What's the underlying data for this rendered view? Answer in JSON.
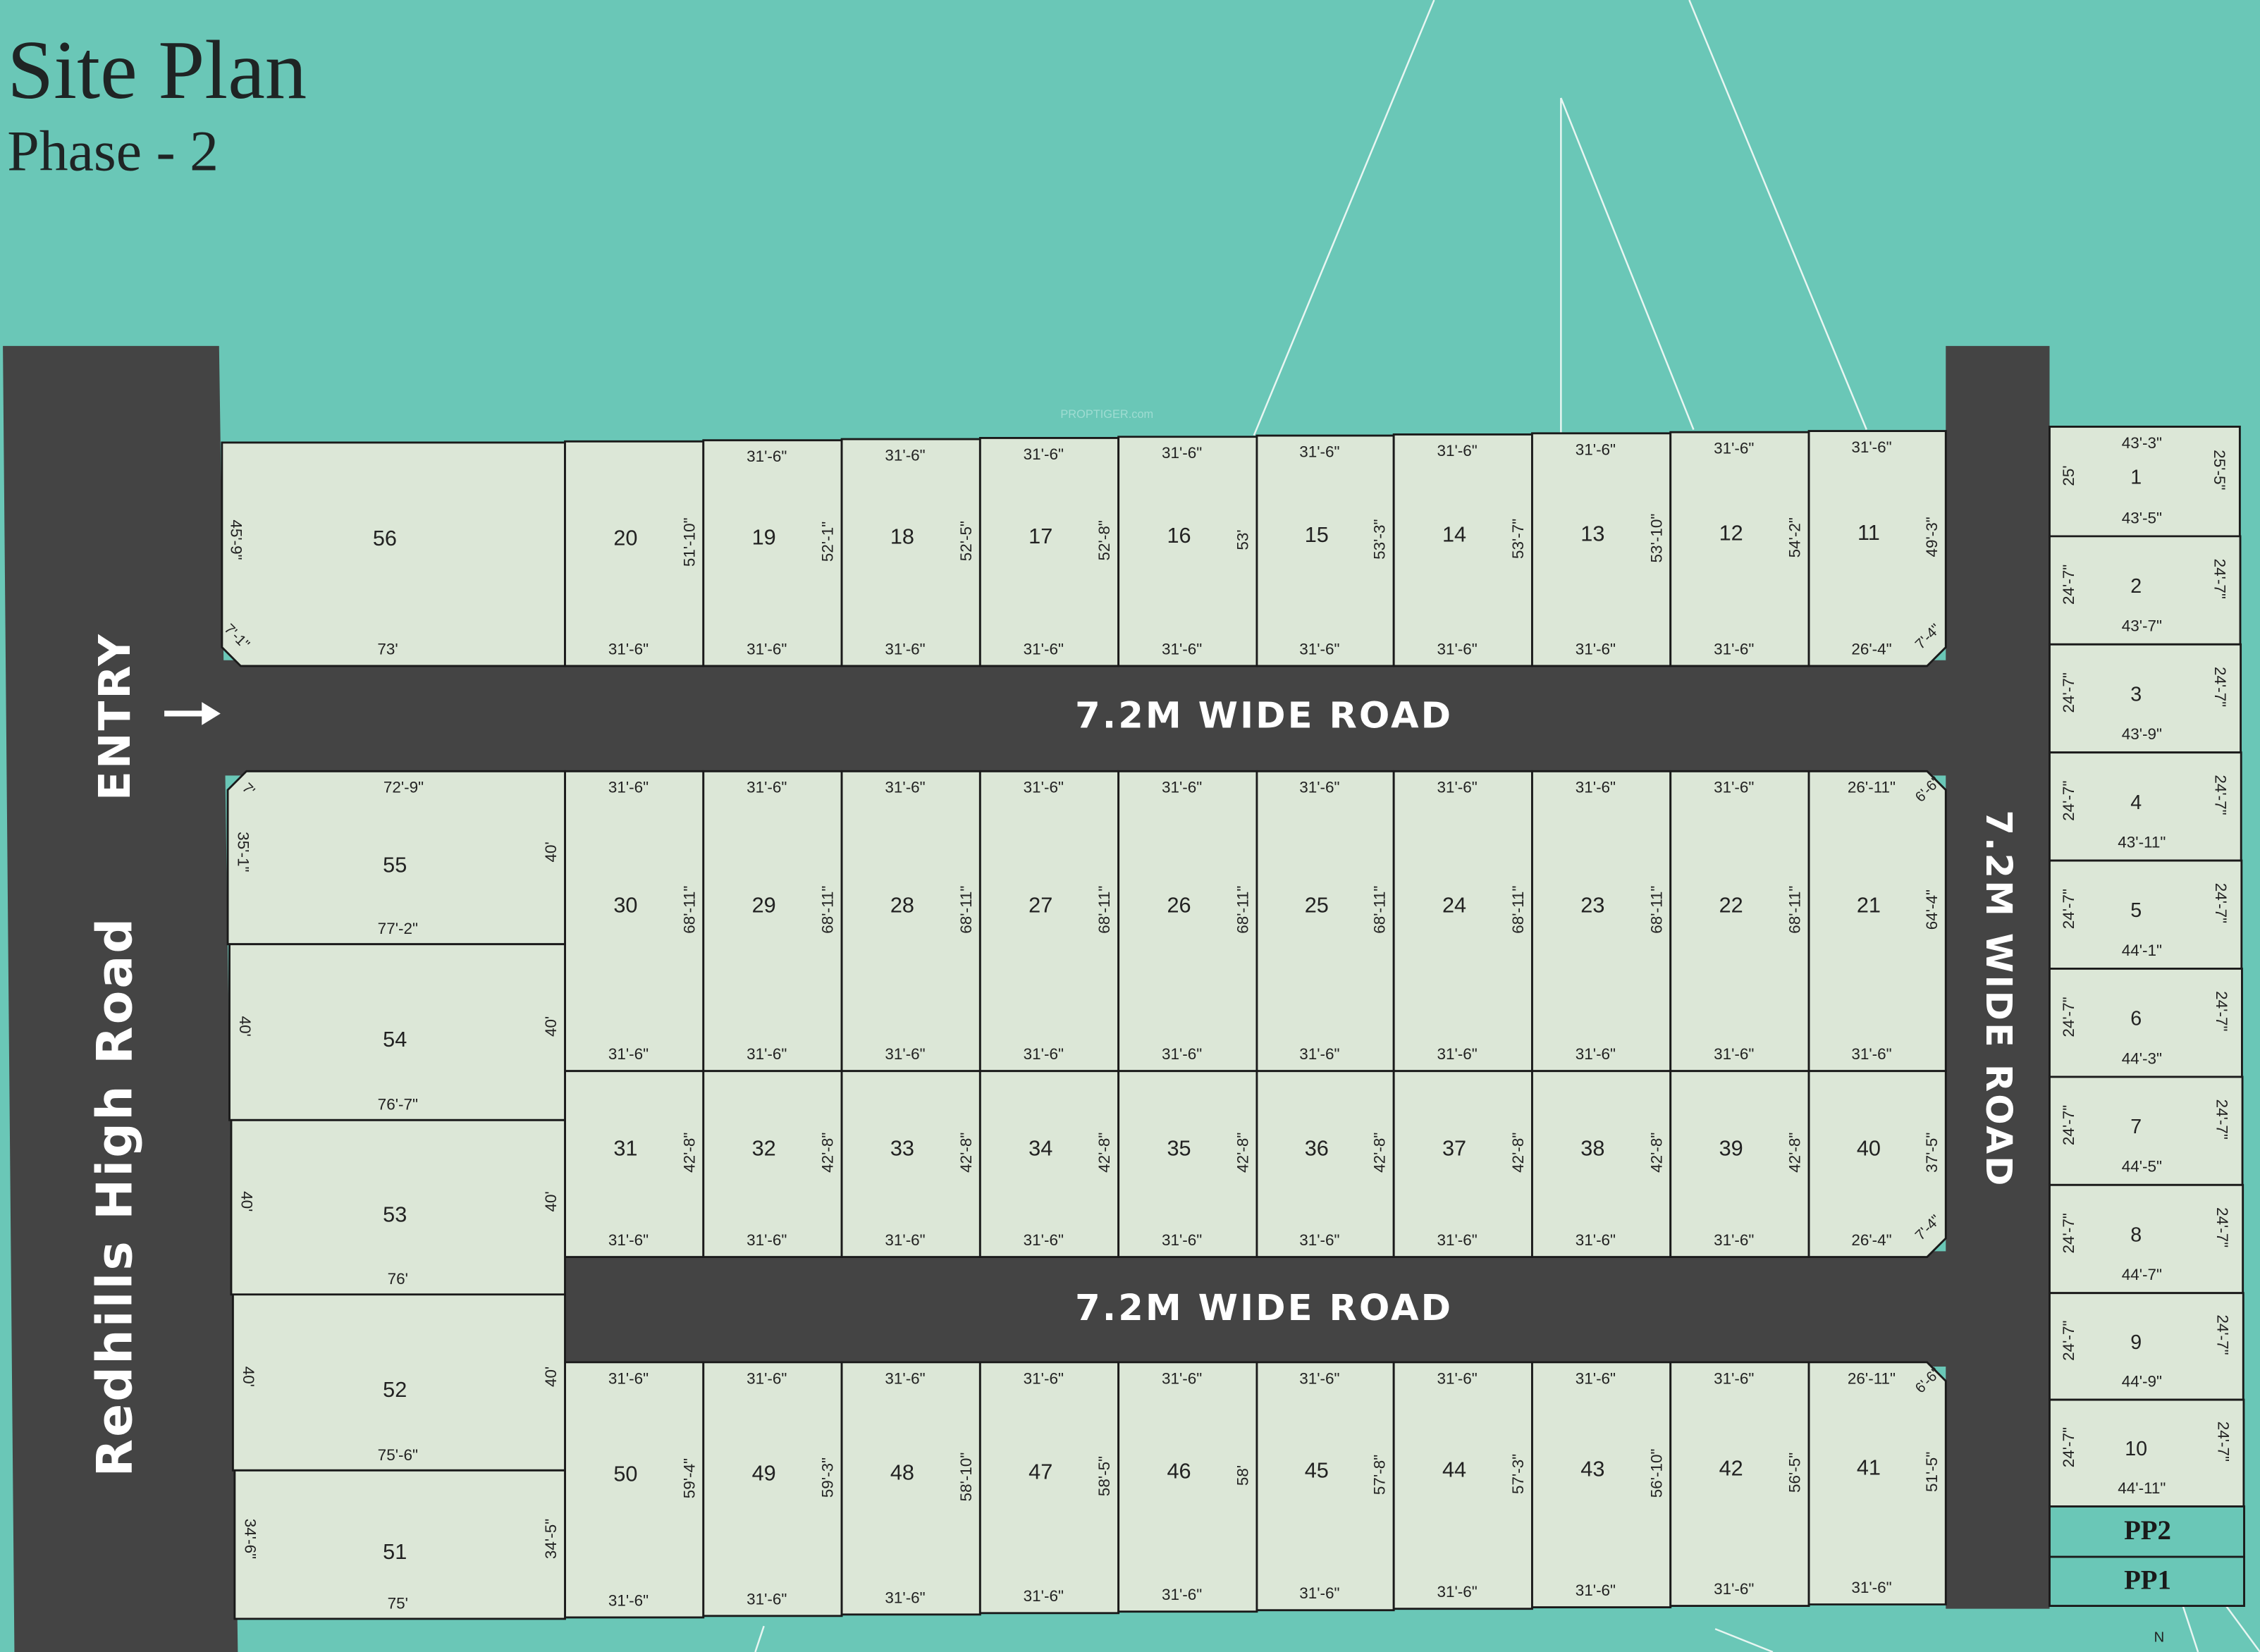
{
  "header": {
    "title": "Site Plan",
    "subtitle": "Phase - 2"
  },
  "watermark": "PROPTIGER.com",
  "compass": "N",
  "colors": {
    "background": "#6AC7B7",
    "road": "#444444",
    "plot": "#DCE7D7",
    "boundary": "#1a1a1a",
    "parking": "#6AC7B7"
  },
  "roads": {
    "main_road": "Redhills High Road",
    "entry": "ENTRY",
    "entry_icon": "arrow-right-icon",
    "upper_road": "7.2M WIDE ROAD",
    "lower_road": "7.2M WIDE ROAD",
    "side_road": "7.2M WIDE ROAD"
  },
  "top_row": [
    {
      "number": "56",
      "bottom": "73'",
      "left": "45'-9\"",
      "corner": "7'-1\""
    },
    {
      "number": "20",
      "bottom": "31'-6\"",
      "side": "51'-10\""
    },
    {
      "number": "19",
      "top": "31'-6\"",
      "bottom": "31'-6\"",
      "side": "52'-1\""
    },
    {
      "number": "18",
      "top": "31'-6\"",
      "bottom": "31'-6\"",
      "side": "52'-5\""
    },
    {
      "number": "17",
      "top": "31'-6\"",
      "bottom": "31'-6\"",
      "side": "52'-8\""
    },
    {
      "number": "16",
      "top": "31'-6\"",
      "bottom": "31'-6\"",
      "side": "53'"
    },
    {
      "number": "15",
      "top": "31'-6\"",
      "bottom": "31'-6\"",
      "side": "53'-3\""
    },
    {
      "number": "14",
      "top": "31'-6\"",
      "bottom": "31'-6\"",
      "side": "53'-7\""
    },
    {
      "number": "13",
      "top": "31'-6\"",
      "bottom": "31'-6\"",
      "side": "53'-10\""
    },
    {
      "number": "12",
      "top": "31'-6\"",
      "bottom": "31'-6\"",
      "side": "54'-2\""
    },
    {
      "number": "11",
      "top": "31'-6\"",
      "bottom": "26'-4\"",
      "side": "49'-3\"",
      "corner": "7'-4\""
    }
  ],
  "middle_upper_row": [
    {
      "number": "30",
      "top": "31'-6\"",
      "bottom": "31'-6\"",
      "side": "68'-11\""
    },
    {
      "number": "29",
      "top": "31'-6\"",
      "bottom": "31'-6\"",
      "side": "68'-11\""
    },
    {
      "number": "28",
      "top": "31'-6\"",
      "bottom": "31'-6\"",
      "side": "68'-11\""
    },
    {
      "number": "27",
      "top": "31'-6\"",
      "bottom": "31'-6\"",
      "side": "68'-11\""
    },
    {
      "number": "26",
      "top": "31'-6\"",
      "bottom": "31'-6\"",
      "side": "68'-11\""
    },
    {
      "number": "25",
      "top": "31'-6\"",
      "bottom": "31'-6\"",
      "side": "68'-11\""
    },
    {
      "number": "24",
      "top": "31'-6\"",
      "bottom": "31'-6\"",
      "side": "68'-11\""
    },
    {
      "number": "23",
      "top": "31'-6\"",
      "bottom": "31'-6\"",
      "side": "68'-11\""
    },
    {
      "number": "22",
      "top": "31'-6\"",
      "bottom": "31'-6\"",
      "side": "68'-11\""
    },
    {
      "number": "21",
      "top": "26'-11\"",
      "bottom": "31'-6\"",
      "side": "64'-4\"",
      "corner": "6'-6\""
    }
  ],
  "middle_lower_row": [
    {
      "number": "31",
      "bottom": "31'-6\"",
      "side": "42'-8\""
    },
    {
      "number": "32",
      "bottom": "31'-6\"",
      "side": "42'-8\""
    },
    {
      "number": "33",
      "bottom": "31'-6\"",
      "side": "42'-8\""
    },
    {
      "number": "34",
      "bottom": "31'-6\"",
      "side": "42'-8\""
    },
    {
      "number": "35",
      "bottom": "31'-6\"",
      "side": "42'-8\""
    },
    {
      "number": "36",
      "bottom": "31'-6\"",
      "side": "42'-8\""
    },
    {
      "number": "37",
      "bottom": "31'-6\"",
      "side": "42'-8\""
    },
    {
      "number": "38",
      "bottom": "31'-6\"",
      "side": "42'-8\""
    },
    {
      "number": "39",
      "bottom": "31'-6\"",
      "side": "42'-8\""
    },
    {
      "number": "40",
      "bottom": "26'-4\"",
      "side": "37'-5\"",
      "corner": "7'-4\""
    }
  ],
  "bottom_row": [
    {
      "number": "50",
      "top": "31'-6\"",
      "bottom": "31'-6\"",
      "side": "59'-4\""
    },
    {
      "number": "49",
      "top": "31'-6\"",
      "bottom": "31'-6\"",
      "side": "59'-3\""
    },
    {
      "number": "48",
      "top": "31'-6\"",
      "bottom": "31'-6\"",
      "side": "58'-10\""
    },
    {
      "number": "47",
      "top": "31'-6\"",
      "bottom": "31'-6\"",
      "side": "58'-5\""
    },
    {
      "number": "46",
      "top": "31'-6\"",
      "bottom": "31'-6\"",
      "side": "58'"
    },
    {
      "number": "45",
      "top": "31'-6\"",
      "bottom": "31'-6\"",
      "side": "57'-8\""
    },
    {
      "number": "44",
      "top": "31'-6\"",
      "bottom": "31'-6\"",
      "side": "57'-3\""
    },
    {
      "number": "43",
      "top": "31'-6\"",
      "bottom": "31'-6\"",
      "side": "56'-10\""
    },
    {
      "number": "42",
      "top": "31'-6\"",
      "bottom": "31'-6\"",
      "side": "56'-5\""
    },
    {
      "number": "41",
      "top": "26'-11\"",
      "bottom": "31'-6\"",
      "side": "51'-5\"",
      "corner": "6'-6\""
    }
  ],
  "left_block": [
    {
      "number": "55",
      "top": "72'-9\"",
      "bottom": "77'-2\"",
      "left": "35'-1\"",
      "right": "40'",
      "corner": "7'"
    },
    {
      "number": "54",
      "bottom": "76'-7\"",
      "left": "40'",
      "right": "40'"
    },
    {
      "number": "53",
      "bottom": "76'",
      "left": "40'",
      "right": "40'"
    },
    {
      "number": "52",
      "bottom": "75'-6\"",
      "left": "40'",
      "right": "40'"
    },
    {
      "number": "51",
      "bottom": "75'",
      "left": "34'-6\"",
      "right": "34'-5\""
    }
  ],
  "right_column": [
    {
      "number": "1",
      "top": "43'-3\"",
      "bottom": "43'-5\"",
      "left": "25'",
      "right": "25'-5\""
    },
    {
      "number": "2",
      "bottom": "43'-7\"",
      "left": "24'-7\"",
      "right": "24'-7\""
    },
    {
      "number": "3",
      "bottom": "43'-9\"",
      "left": "24'-7\"",
      "right": "24'-7\""
    },
    {
      "number": "4",
      "bottom": "43'-11\"",
      "left": "24'-7\"",
      "right": "24'-7\""
    },
    {
      "number": "5",
      "bottom": "44'-1\"",
      "left": "24'-7\"",
      "right": "24'-7\""
    },
    {
      "number": "6",
      "bottom": "44'-3\"",
      "left": "24'-7\"",
      "right": "24'-7\""
    },
    {
      "number": "7",
      "bottom": "44'-5\"",
      "left": "24'-7\"",
      "right": "24'-7\""
    },
    {
      "number": "8",
      "bottom": "44'-7\"",
      "left": "24'-7\"",
      "right": "24'-7\""
    },
    {
      "number": "9",
      "bottom": "44'-9\"",
      "left": "24'-7\"",
      "right": "24'-7\""
    },
    {
      "number": "10",
      "bottom": "44'-11\"",
      "left": "24'-7\"",
      "right": "24'-7\""
    }
  ],
  "parking": [
    "PP2",
    "PP1"
  ]
}
